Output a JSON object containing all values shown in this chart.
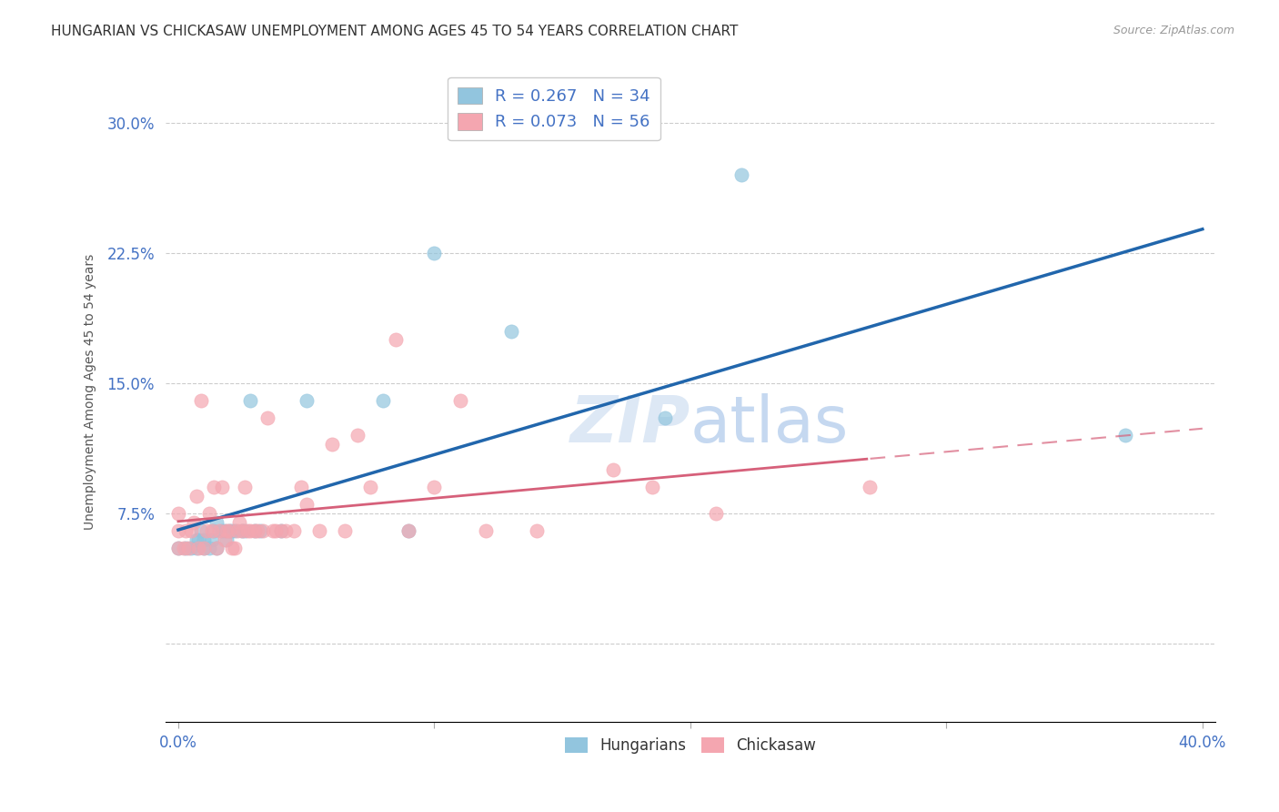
{
  "title": "HUNGARIAN VS CHICKASAW UNEMPLOYMENT AMONG AGES 45 TO 54 YEARS CORRELATION CHART",
  "source": "Source: ZipAtlas.com",
  "ylabel": "Unemployment Among Ages 45 to 54 years",
  "ytick_vals": [
    0.0,
    0.075,
    0.15,
    0.225,
    0.3
  ],
  "ytick_labels": [
    "",
    "7.5%",
    "15.0%",
    "22.5%",
    "30.0%"
  ],
  "xlim": [
    -0.005,
    0.405
  ],
  "ylim": [
    -0.045,
    0.335
  ],
  "hungarian_R": 0.267,
  "hungarian_N": 34,
  "chickasaw_R": 0.073,
  "chickasaw_N": 56,
  "hungarian_color": "#92c5de",
  "chickasaw_color": "#f4a6b0",
  "hungarian_line_color": "#2166ac",
  "chickasaw_line_color": "#d6607a",
  "background_color": "#ffffff",
  "grid_color": "#cccccc",
  "axis_label_color": "#4472c4",
  "hungarian_x": [
    0.0,
    0.003,
    0.005,
    0.007,
    0.007,
    0.008,
    0.009,
    0.01,
    0.01,
    0.012,
    0.013,
    0.014,
    0.015,
    0.015,
    0.017,
    0.018,
    0.019,
    0.02,
    0.021,
    0.022,
    0.025,
    0.026,
    0.028,
    0.03,
    0.032,
    0.04,
    0.05,
    0.08,
    0.09,
    0.1,
    0.13,
    0.19,
    0.22,
    0.37
  ],
  "hungarian_y": [
    0.055,
    0.055,
    0.055,
    0.055,
    0.06,
    0.06,
    0.065,
    0.055,
    0.06,
    0.055,
    0.06,
    0.065,
    0.055,
    0.07,
    0.065,
    0.065,
    0.06,
    0.065,
    0.065,
    0.065,
    0.065,
    0.065,
    0.14,
    0.065,
    0.065,
    0.065,
    0.14,
    0.14,
    0.065,
    0.225,
    0.18,
    0.13,
    0.27,
    0.12
  ],
  "chickasaw_x": [
    0.0,
    0.0,
    0.0,
    0.002,
    0.003,
    0.004,
    0.005,
    0.006,
    0.007,
    0.008,
    0.009,
    0.01,
    0.011,
    0.012,
    0.013,
    0.014,
    0.015,
    0.016,
    0.017,
    0.018,
    0.019,
    0.02,
    0.021,
    0.022,
    0.023,
    0.024,
    0.025,
    0.026,
    0.027,
    0.028,
    0.03,
    0.031,
    0.033,
    0.035,
    0.037,
    0.038,
    0.04,
    0.042,
    0.045,
    0.048,
    0.05,
    0.055,
    0.06,
    0.065,
    0.07,
    0.075,
    0.085,
    0.09,
    0.1,
    0.11,
    0.12,
    0.14,
    0.17,
    0.185,
    0.21,
    0.27
  ],
  "chickasaw_y": [
    0.055,
    0.065,
    0.075,
    0.055,
    0.065,
    0.055,
    0.065,
    0.07,
    0.085,
    0.055,
    0.14,
    0.055,
    0.065,
    0.075,
    0.065,
    0.09,
    0.055,
    0.065,
    0.09,
    0.06,
    0.065,
    0.065,
    0.055,
    0.055,
    0.065,
    0.07,
    0.065,
    0.09,
    0.065,
    0.065,
    0.065,
    0.065,
    0.065,
    0.13,
    0.065,
    0.065,
    0.065,
    0.065,
    0.065,
    0.09,
    0.08,
    0.065,
    0.115,
    0.065,
    0.12,
    0.09,
    0.175,
    0.065,
    0.09,
    0.14,
    0.065,
    0.065,
    0.1,
    0.09,
    0.075,
    0.09
  ],
  "title_fontsize": 11,
  "label_fontsize": 10,
  "tick_fontsize": 12,
  "watermark": "ZIPatlas",
  "bottom_legend_labels": [
    "Hungarians",
    "Chickasaw"
  ]
}
